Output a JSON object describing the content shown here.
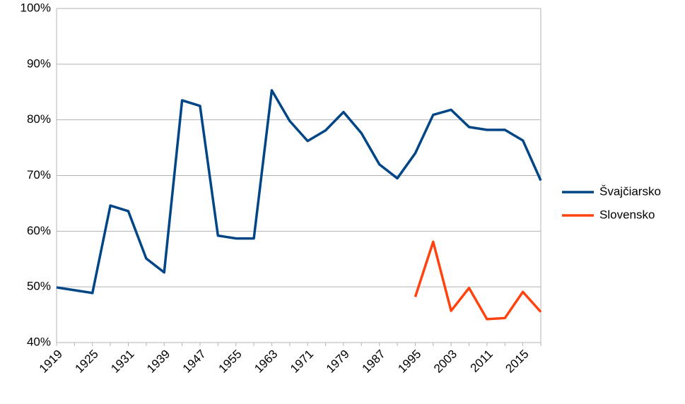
{
  "chart_data": {
    "type": "line",
    "categories": [
      "1919",
      null,
      "1925",
      null,
      "1931",
      null,
      "1939",
      null,
      "1947",
      null,
      "1955",
      null,
      "1963",
      null,
      "1971",
      null,
      "1979",
      null,
      "1987",
      null,
      "1995",
      null,
      "2003",
      null,
      "2011",
      null,
      "2015",
      null
    ],
    "series": [
      {
        "name": "Švajčiarsko",
        "color": "#004586",
        "values": [
          49.9,
          49.4,
          48.9,
          64.6,
          63.6,
          55.1,
          52.6,
          83.5,
          82.5,
          59.2,
          58.7,
          58.7,
          85.3,
          79.8,
          76.2,
          78.1,
          81.4,
          77.6,
          72.0,
          69.5,
          74.0,
          80.9,
          81.8,
          78.7,
          78.2,
          78.2,
          76.3,
          69.1
        ]
      },
      {
        "name": "Slovensko",
        "color": "#ff420e",
        "values": [
          null,
          null,
          null,
          null,
          null,
          null,
          null,
          null,
          null,
          null,
          null,
          null,
          null,
          null,
          null,
          null,
          null,
          null,
          null,
          null,
          48.2,
          58.1,
          45.7,
          49.8,
          44.2,
          44.4,
          49.1,
          45.5
        ]
      }
    ],
    "ylim": [
      40,
      100
    ],
    "yticks": [
      {
        "value": 40,
        "label": "40%"
      },
      {
        "value": 50,
        "label": "50%"
      },
      {
        "value": 60,
        "label": "60%"
      },
      {
        "value": 70,
        "label": "70%"
      },
      {
        "value": 80,
        "label": "80%"
      },
      {
        "value": 90,
        "label": "90%"
      },
      {
        "value": 100,
        "label": "100%"
      }
    ],
    "grid": true,
    "legend": "right"
  }
}
